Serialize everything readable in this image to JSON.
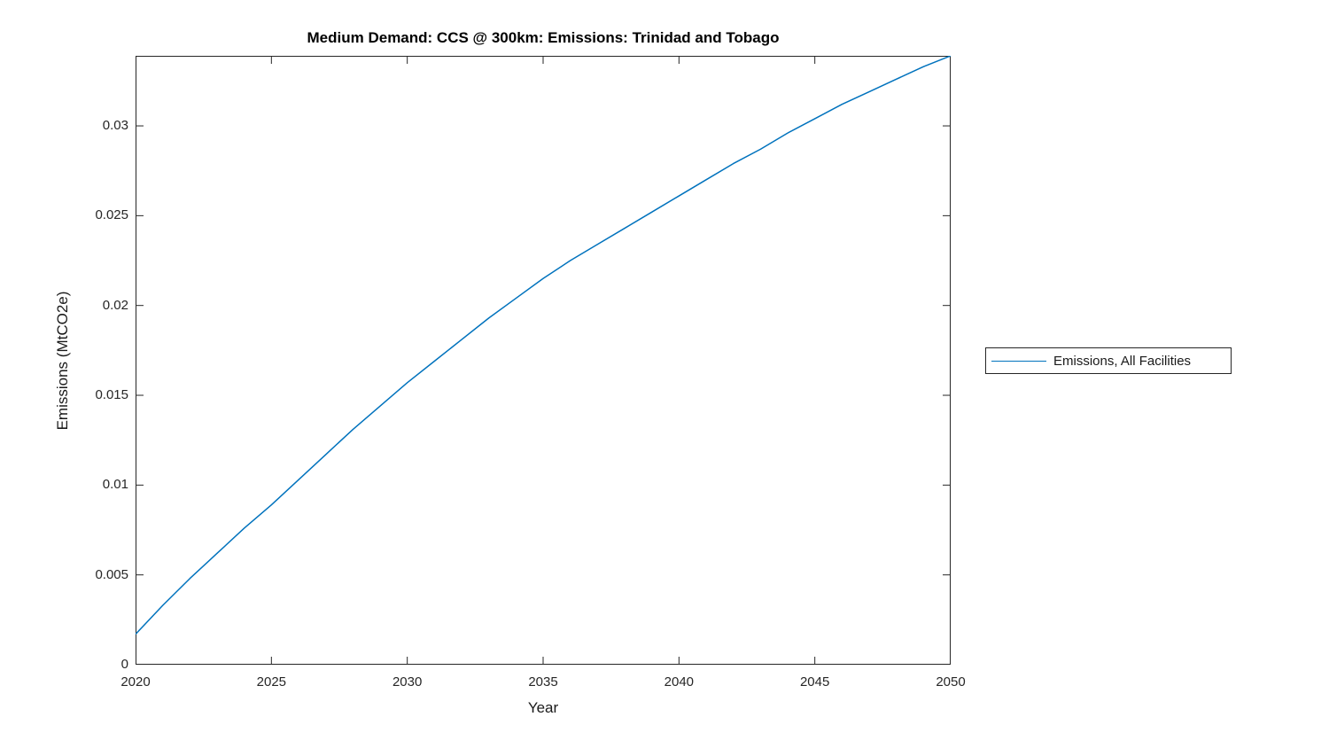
{
  "chart_data": {
    "type": "line",
    "title": "Medium Demand: CCS @ 300km: Emissions: Trinidad and Tobago",
    "xlabel": "Year",
    "ylabel": "Emissions (MtCO2e)",
    "xlim": [
      2020,
      2050
    ],
    "ylim": [
      0,
      0.0339
    ],
    "xticks": [
      "2020",
      "2025",
      "2030",
      "2035",
      "2040",
      "2045",
      "2050"
    ],
    "ytick_values": [
      0,
      0.005,
      0.01,
      0.015,
      0.02,
      0.025,
      0.03
    ],
    "ytick_labels": [
      "0",
      "0.005",
      "0.01",
      "0.015",
      "0.02",
      "0.025",
      "0.03"
    ],
    "grid": false,
    "background_color": "#ffffff",
    "axis_color": "#262626",
    "legend": {
      "position": "right-outside",
      "entries": [
        {
          "label": "Emissions, All Facilities",
          "color": "#0072BD"
        }
      ]
    },
    "series": [
      {
        "name": "Emissions, All Facilities",
        "color": "#0072BD",
        "x": [
          2020,
          2021,
          2022,
          2023,
          2024,
          2025,
          2026,
          2027,
          2028,
          2029,
          2030,
          2031,
          2032,
          2033,
          2034,
          2035,
          2036,
          2037,
          2038,
          2039,
          2040,
          2041,
          2042,
          2043,
          2044,
          2045,
          2046,
          2047,
          2048,
          2049,
          2050
        ],
        "y": [
          0.0017,
          0.0033,
          0.0048,
          0.0062,
          0.0076,
          0.0089,
          0.0103,
          0.0117,
          0.0131,
          0.0144,
          0.0157,
          0.0169,
          0.0181,
          0.0193,
          0.0204,
          0.0215,
          0.0225,
          0.0234,
          0.0243,
          0.0252,
          0.0261,
          0.027,
          0.0279,
          0.0287,
          0.0296,
          0.0304,
          0.0312,
          0.0319,
          0.0326,
          0.0333,
          0.0339
        ]
      }
    ]
  }
}
